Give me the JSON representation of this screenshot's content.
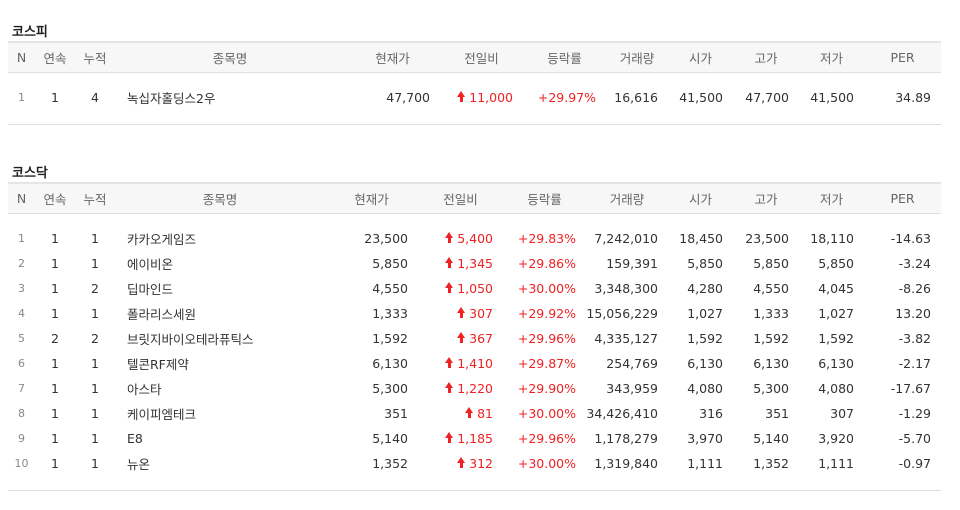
{
  "headers": [
    "N",
    "연속",
    "누적",
    "종목명",
    "현재가",
    "전일비",
    "등락률",
    "거래량",
    "시가",
    "고가",
    "저가",
    "PER"
  ],
  "kospi": {
    "title": "코스피",
    "rows": [
      [
        "1",
        "1",
        "4",
        "녹십자홀딩스2우",
        "47,700",
        "11,000",
        "+29.97%",
        "16,616",
        "41,500",
        "47,700",
        "41,500",
        "34.89"
      ]
    ]
  },
  "kosdaq": {
    "title": "코스닥",
    "rows": [
      [
        "1",
        "1",
        "1",
        "카카오게임즈",
        "23,500",
        "5,400",
        "+29.83%",
        "7,242,010",
        "18,450",
        "23,500",
        "18,110",
        "-14.63"
      ],
      [
        "2",
        "1",
        "1",
        "에이비온",
        "5,850",
        "1,345",
        "+29.86%",
        "159,391",
        "5,850",
        "5,850",
        "5,850",
        "-3.24"
      ],
      [
        "3",
        "1",
        "2",
        "딥마인드",
        "4,550",
        "1,050",
        "+30.00%",
        "3,348,300",
        "4,280",
        "4,550",
        "4,045",
        "-8.26"
      ],
      [
        "4",
        "1",
        "1",
        "폴라리스세원",
        "1,333",
        "307",
        "+29.92%",
        "15,056,229",
        "1,027",
        "1,333",
        "1,027",
        "13.20"
      ],
      [
        "5",
        "2",
        "2",
        "브릿지바이오테라퓨틱스",
        "1,592",
        "367",
        "+29.96%",
        "4,335,127",
        "1,592",
        "1,592",
        "1,592",
        "-3.82"
      ],
      [
        "6",
        "1",
        "1",
        "텔콘RF제약",
        "6,130",
        "1,410",
        "+29.87%",
        "254,769",
        "6,130",
        "6,130",
        "6,130",
        "-2.17"
      ],
      [
        "7",
        "1",
        "1",
        "아스타",
        "5,300",
        "1,220",
        "+29.90%",
        "343,959",
        "4,080",
        "5,300",
        "4,080",
        "-17.67"
      ],
      [
        "8",
        "1",
        "1",
        "케이피엠테크",
        "351",
        "81",
        "+30.00%",
        "34,426,410",
        "316",
        "351",
        "307",
        "-1.29"
      ],
      [
        "9",
        "1",
        "1",
        "E8",
        "5,140",
        "1,185",
        "+29.96%",
        "1,178,279",
        "3,970",
        "5,140",
        "3,920",
        "-5.70"
      ],
      [
        "10",
        "1",
        "1",
        "뉴온",
        "1,352",
        "312",
        "+30.00%",
        "1,319,840",
        "1,111",
        "1,352",
        "1,111",
        "-0.97"
      ]
    ]
  },
  "colors": {
    "up": "#ee2222"
  },
  "icons": {
    "change": "up-arrow-icon"
  }
}
